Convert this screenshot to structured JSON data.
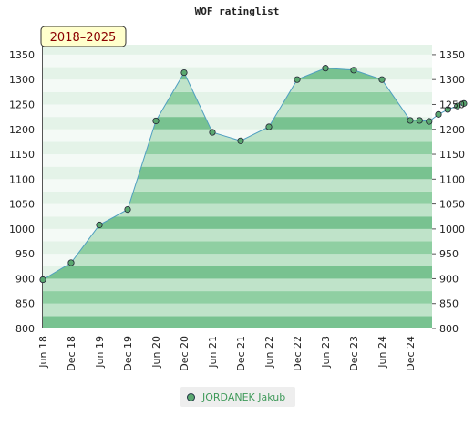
{
  "chart_data": {
    "type": "area",
    "title": "WOF ratinglist",
    "badge": "2018–2025",
    "x_tick_labels": [
      "Jun 18",
      "Dec 18",
      "Jun 19",
      "Dec 19",
      "Jun 20",
      "Dec 20",
      "Jun 21",
      "Dec 21",
      "Jun 22",
      "Dec 22",
      "Jun 23",
      "Dec 23",
      "Jun 24",
      "Dec 24"
    ],
    "y_ticks": [
      800,
      850,
      900,
      950,
      1000,
      1050,
      1100,
      1150,
      1200,
      1250,
      1300,
      1350
    ],
    "ylim": [
      800,
      1370
    ],
    "grid": false,
    "legend_position": "bottom",
    "series": [
      {
        "name": "JORDANEK Jakub",
        "x": [
          0,
          1,
          2,
          3,
          4,
          5,
          6,
          7,
          8,
          9,
          10,
          11,
          12,
          13,
          13.33,
          13.67,
          14,
          14.33,
          14.67,
          14.9
        ],
        "values": [
          898,
          932,
          1008,
          1039,
          1217,
          1314,
          1194,
          1177,
          1205,
          1300,
          1323,
          1319,
          1300,
          1218,
          1218,
          1216,
          1230,
          1240,
          1247,
          1252
        ]
      }
    ],
    "colors": {
      "fill_light": "#e4f3e8",
      "fill_mid": "#bfe3c9",
      "fill_dark": "#8fcfa2",
      "fill_darker": "#78c290",
      "line": "#4f9fc0",
      "marker": "#5aa870"
    }
  }
}
